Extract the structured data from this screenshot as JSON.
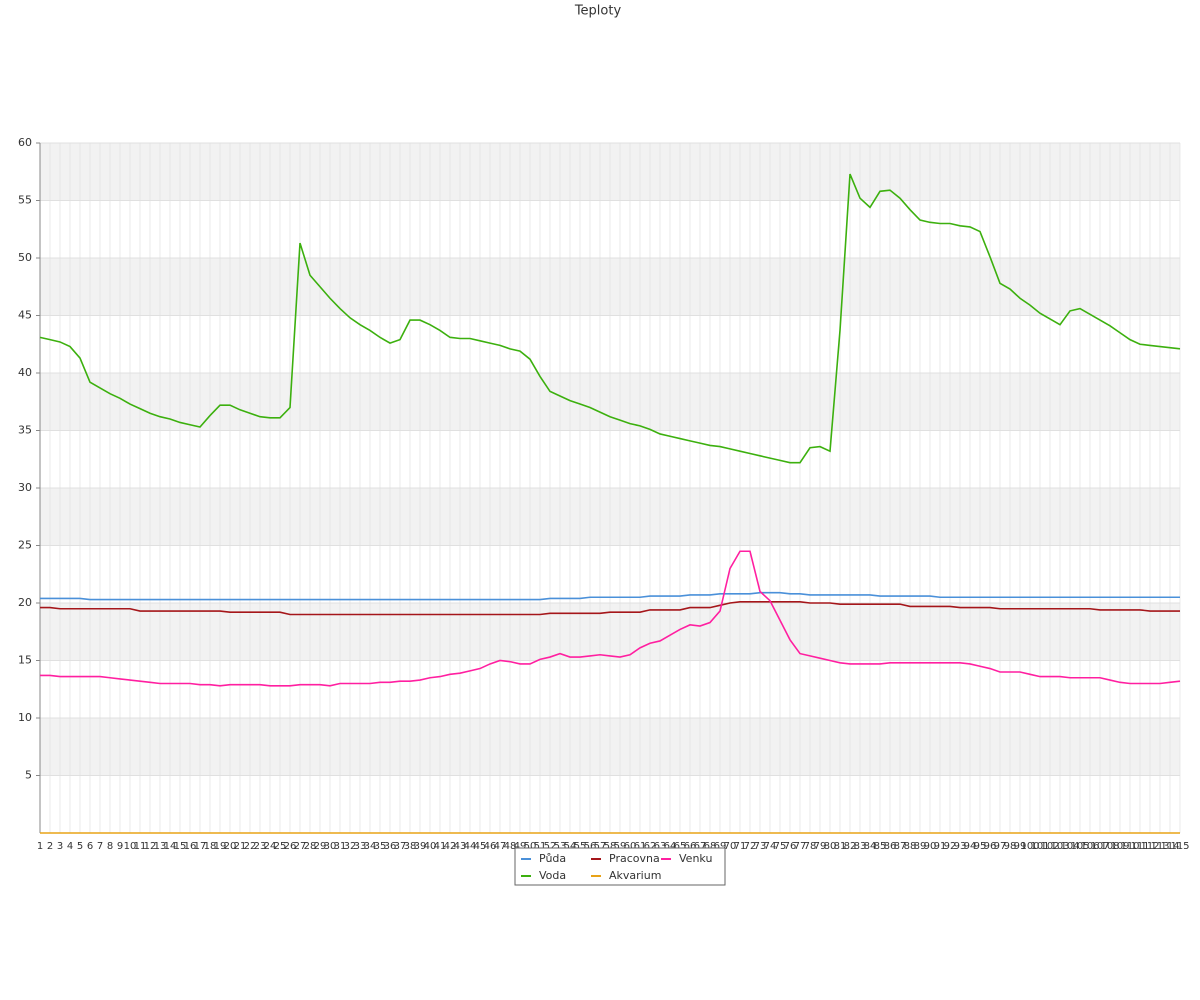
{
  "chart_data": {
    "type": "line",
    "title": "Teploty",
    "categories": [
      1,
      2,
      3,
      4,
      5,
      6,
      7,
      8,
      9,
      10,
      11,
      12,
      13,
      14,
      15,
      16,
      17,
      18,
      19,
      20,
      21,
      22,
      23,
      24,
      25,
      26,
      27,
      28,
      29,
      30,
      31,
      32,
      33,
      34,
      35,
      36,
      37,
      38,
      39,
      40,
      41,
      42,
      43,
      44,
      45,
      46,
      47,
      48,
      49,
      50,
      51,
      52,
      53,
      54,
      55,
      56,
      57,
      58,
      59,
      60,
      61,
      62,
      63,
      64,
      65,
      66,
      67,
      68,
      69,
      70,
      71,
      72,
      73,
      74,
      75,
      76,
      77,
      78,
      79,
      80,
      81,
      82,
      83,
      84,
      85,
      86,
      87,
      88,
      89,
      90,
      91,
      92,
      93,
      94,
      95,
      96,
      97,
      98,
      99,
      100,
      101,
      102,
      103,
      104,
      105,
      106,
      107,
      108,
      109,
      110,
      111,
      112,
      113,
      114,
      115
    ],
    "series": [
      {
        "name": "Půda",
        "color": "#4a90d9",
        "values": [
          20.4,
          20.4,
          20.4,
          20.4,
          20.4,
          20.3,
          20.3,
          20.3,
          20.3,
          20.3,
          20.3,
          20.3,
          20.3,
          20.3,
          20.3,
          20.3,
          20.3,
          20.3,
          20.3,
          20.3,
          20.3,
          20.3,
          20.3,
          20.3,
          20.3,
          20.3,
          20.3,
          20.3,
          20.3,
          20.3,
          20.3,
          20.3,
          20.3,
          20.3,
          20.3,
          20.3,
          20.3,
          20.3,
          20.3,
          20.3,
          20.3,
          20.3,
          20.3,
          20.3,
          20.3,
          20.3,
          20.3,
          20.3,
          20.3,
          20.3,
          20.3,
          20.4,
          20.4,
          20.4,
          20.4,
          20.5,
          20.5,
          20.5,
          20.5,
          20.5,
          20.5,
          20.6,
          20.6,
          20.6,
          20.6,
          20.7,
          20.7,
          20.7,
          20.8,
          20.8,
          20.8,
          20.8,
          20.9,
          20.9,
          20.9,
          20.8,
          20.8,
          20.7,
          20.7,
          20.7,
          20.7,
          20.7,
          20.7,
          20.7,
          20.6,
          20.6,
          20.6,
          20.6,
          20.6,
          20.6,
          20.5,
          20.5,
          20.5,
          20.5,
          20.5,
          20.5,
          20.5,
          20.5,
          20.5,
          20.5,
          20.5,
          20.5,
          20.5,
          20.5,
          20.5,
          20.5,
          20.5,
          20.5,
          20.5,
          20.5,
          20.5,
          20.5,
          20.5,
          20.5,
          20.5
        ]
      },
      {
        "name": "Voda",
        "color": "#3cb00e",
        "values": [
          43.1,
          42.9,
          42.7,
          42.3,
          41.3,
          39.2,
          38.7,
          38.2,
          37.8,
          37.3,
          36.9,
          36.5,
          36.2,
          36,
          35.7,
          35.5,
          35.3,
          36.3,
          37.2,
          37.2,
          36.8,
          36.5,
          36.2,
          36.1,
          36.1,
          37,
          51.3,
          48.5,
          47.5,
          46.5,
          45.6,
          44.8,
          44.2,
          43.7,
          43.1,
          42.6,
          42.9,
          44.6,
          44.6,
          44.2,
          43.7,
          43.1,
          43,
          43,
          42.8,
          42.6,
          42.4,
          42.1,
          41.9,
          41.2,
          39.7,
          38.4,
          38,
          37.6,
          37.3,
          37,
          36.6,
          36.2,
          35.9,
          35.6,
          35.4,
          35.1,
          34.7,
          34.5,
          34.3,
          34.1,
          33.9,
          33.7,
          33.6,
          33.4,
          33.2,
          33,
          32.8,
          32.6,
          32.4,
          32.2,
          32.2,
          33.5,
          33.6,
          33.2,
          43.7,
          57.3,
          55.2,
          54.4,
          55.8,
          55.9,
          55.2,
          54.2,
          53.3,
          53.1,
          53,
          53,
          52.8,
          52.7,
          52.3,
          50.1,
          47.8,
          47.3,
          46.5,
          45.9,
          45.2,
          44.7,
          44.2,
          45.4,
          45.6,
          45.1,
          44.6,
          44.1,
          43.5,
          42.9,
          42.5,
          42.4,
          42.3,
          42.2,
          42.1
        ]
      },
      {
        "name": "Pracovna",
        "color": "#a5161a",
        "values": [
          19.6,
          19.6,
          19.5,
          19.5,
          19.5,
          19.5,
          19.5,
          19.5,
          19.5,
          19.5,
          19.3,
          19.3,
          19.3,
          19.3,
          19.3,
          19.3,
          19.3,
          19.3,
          19.3,
          19.2,
          19.2,
          19.2,
          19.2,
          19.2,
          19.2,
          19,
          19,
          19,
          19,
          19,
          19,
          19,
          19,
          19,
          19,
          19,
          19,
          19,
          19,
          19,
          19,
          19,
          19,
          19,
          19,
          19,
          19,
          19,
          19,
          19,
          19,
          19.1,
          19.1,
          19.1,
          19.1,
          19.1,
          19.1,
          19.2,
          19.2,
          19.2,
          19.2,
          19.4,
          19.4,
          19.4,
          19.4,
          19.6,
          19.6,
          19.6,
          19.8,
          20,
          20.1,
          20.1,
          20.1,
          20.1,
          20.1,
          20.1,
          20.1,
          20,
          20,
          20,
          19.9,
          19.9,
          19.9,
          19.9,
          19.9,
          19.9,
          19.9,
          19.7,
          19.7,
          19.7,
          19.7,
          19.7,
          19.6,
          19.6,
          19.6,
          19.6,
          19.5,
          19.5,
          19.5,
          19.5,
          19.5,
          19.5,
          19.5,
          19.5,
          19.5,
          19.5,
          19.4,
          19.4,
          19.4,
          19.4,
          19.4,
          19.3,
          19.3,
          19.3,
          19.3
        ]
      },
      {
        "name": "Akvarium",
        "color": "#e8a317",
        "values": [
          0,
          0,
          0,
          0,
          0,
          0,
          0,
          0,
          0,
          0,
          0,
          0,
          0,
          0,
          0,
          0,
          0,
          0,
          0,
          0,
          0,
          0,
          0,
          0,
          0,
          0,
          0,
          0,
          0,
          0,
          0,
          0,
          0,
          0,
          0,
          0,
          0,
          0,
          0,
          0,
          0,
          0,
          0,
          0,
          0,
          0,
          0,
          0,
          0,
          0,
          0,
          0,
          0,
          0,
          0,
          0,
          0,
          0,
          0,
          0,
          0,
          0,
          0,
          0,
          0,
          0,
          0,
          0,
          0,
          0,
          0,
          0,
          0,
          0,
          0,
          0,
          0,
          0,
          0,
          0,
          0,
          0,
          0,
          0,
          0,
          0,
          0,
          0,
          0,
          0,
          0,
          0,
          0,
          0,
          0,
          0,
          0,
          0,
          0,
          0,
          0,
          0,
          0,
          0,
          0,
          0,
          0,
          0,
          0,
          0,
          0,
          0,
          0,
          0,
          0
        ]
      },
      {
        "name": "Venku",
        "color": "#ff1fa0",
        "values": [
          13.7,
          13.7,
          13.6,
          13.6,
          13.6,
          13.6,
          13.6,
          13.5,
          13.4,
          13.3,
          13.2,
          13.1,
          13,
          13,
          13,
          13,
          12.9,
          12.9,
          12.8,
          12.9,
          12.9,
          12.9,
          12.9,
          12.8,
          12.8,
          12.8,
          12.9,
          12.9,
          12.9,
          12.8,
          13,
          13,
          13,
          13,
          13.1,
          13.1,
          13.2,
          13.2,
          13.3,
          13.5,
          13.6,
          13.8,
          13.9,
          14.1,
          14.3,
          14.7,
          15,
          14.9,
          14.7,
          14.7,
          15.1,
          15.3,
          15.6,
          15.3,
          15.3,
          15.4,
          15.5,
          15.4,
          15.3,
          15.5,
          16.1,
          16.5,
          16.7,
          17.2,
          17.7,
          18.1,
          18,
          18.3,
          19.3,
          23,
          24.5,
          24.5,
          21,
          20.2,
          18.5,
          16.8,
          15.6,
          15.4,
          15.2,
          15,
          14.8,
          14.7,
          14.7,
          14.7,
          14.7,
          14.8,
          14.8,
          14.8,
          14.8,
          14.8,
          14.8,
          14.8,
          14.8,
          14.7,
          14.5,
          14.3,
          14,
          14,
          14,
          13.8,
          13.6,
          13.6,
          13.6,
          13.5,
          13.5,
          13.5,
          13.5,
          13.3,
          13.1,
          13,
          13,
          13,
          13,
          13.1,
          13.2
        ]
      }
    ],
    "ylim": [
      0,
      60
    ],
    "yticks": [
      5,
      10,
      15,
      20,
      25,
      30,
      35,
      40,
      45,
      50,
      55,
      60
    ],
    "grid": true,
    "legend": "bottom"
  }
}
